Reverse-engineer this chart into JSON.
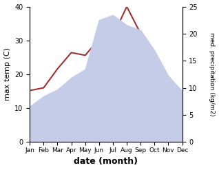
{
  "months": [
    "Jan",
    "Feb",
    "Mar",
    "Apr",
    "May",
    "Jun",
    "Jul",
    "Aug",
    "Sep",
    "Oct",
    "Nov",
    "Dec"
  ],
  "max_temp": [
    10.5,
    13.5,
    15.5,
    19.0,
    21.5,
    36.0,
    37.5,
    34.5,
    33.0,
    27.0,
    19.5,
    15.0
  ],
  "precipitation": [
    9.5,
    10.0,
    13.5,
    16.5,
    16.0,
    19.0,
    19.5,
    25.0,
    20.0,
    14.0,
    8.5,
    7.5
  ],
  "temp_fill_color": "#c5cce8",
  "temp_line_color": "#c5cce8",
  "precip_line_color": "#a03030",
  "ylabel_left": "max temp (C)",
  "ylabel_right": "med. precipitation (kg/m2)",
  "xlabel": "date (month)",
  "ylim_left": [
    0,
    40
  ],
  "ylim_right": [
    0,
    25
  ],
  "yticks_left": [
    0,
    10,
    20,
    30,
    40
  ],
  "yticks_right": [
    0,
    5,
    10,
    15,
    20,
    25
  ]
}
